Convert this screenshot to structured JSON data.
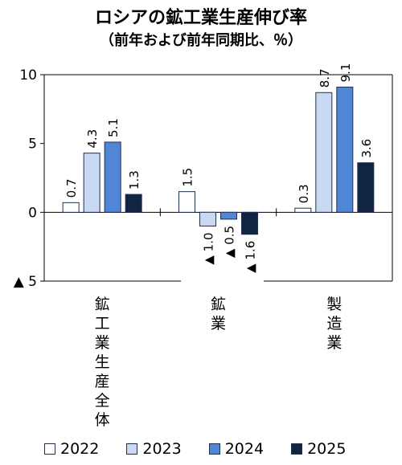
{
  "chart_data": {
    "type": "bar",
    "title": "ロシアの鉱工業生産伸び率",
    "subtitle": "（前年および前年同期比、％）",
    "categories": [
      "鉱工業生産全体",
      "鉱業",
      "製造業"
    ],
    "series": [
      {
        "name": "2022",
        "values": [
          0.7,
          1.5,
          0.3
        ],
        "labels": [
          "0.7",
          "1.5",
          "0.3"
        ],
        "color": "#ffffff"
      },
      {
        "name": "2023",
        "values": [
          4.3,
          -1.0,
          8.7
        ],
        "labels": [
          "4.3",
          "▲ 1.0",
          "8.7"
        ],
        "color": "#c9d9f2"
      },
      {
        "name": "2024",
        "values": [
          5.1,
          -0.5,
          9.1
        ],
        "labels": [
          "5.1",
          "▲ 0.5",
          "9.1"
        ],
        "color": "#4f86d6"
      },
      {
        "name": "2025",
        "values": [
          1.3,
          -1.6,
          3.6
        ],
        "labels": [
          "1.3",
          "▲ 1.6",
          "3.6"
        ],
        "color": "#102544"
      }
    ],
    "ylim": [
      -5,
      10
    ],
    "yticks": [
      {
        "value": 10,
        "label": "10"
      },
      {
        "value": 5,
        "label": "5"
      },
      {
        "value": 0,
        "label": "0"
      },
      {
        "value": -5,
        "label": "▲ 5"
      }
    ],
    "grid": false,
    "legend_position": "bottom"
  }
}
